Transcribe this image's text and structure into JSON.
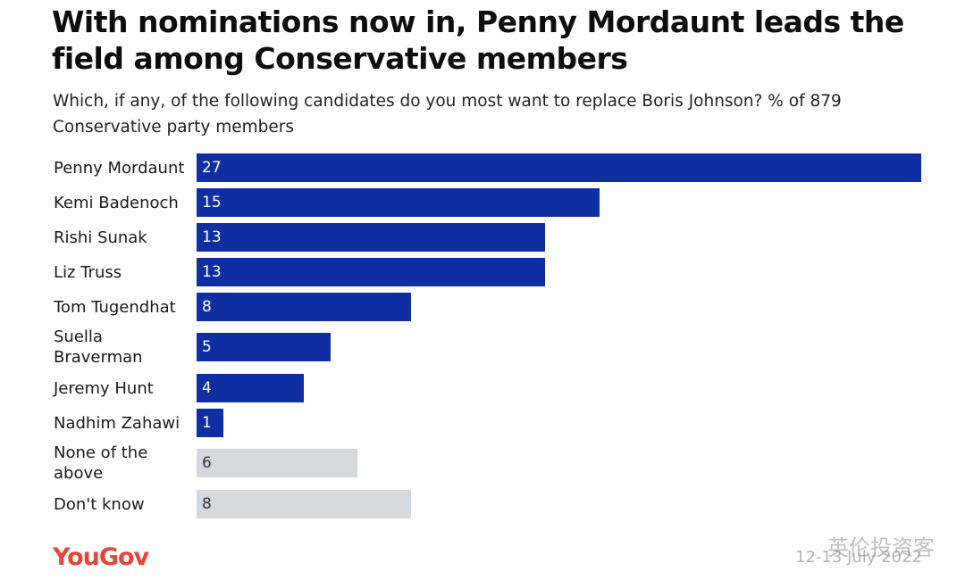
{
  "title": "With nominations now in, Penny Mordaunt leads the field among Conservative members",
  "subtitle": "Which, if any, of the following candidates do you most want to replace Boris Johnson? % of 879 Conservative party members",
  "source_logo": "YouGov",
  "date": "12-13 July 2022",
  "watermark": "英伦投资客",
  "colors": {
    "candidate_bar": "#0e2ea2",
    "other_bar": "#d4d8df",
    "candidate_value_text": "#ffffff",
    "other_value_text": "#333333",
    "logo": "#e2483a"
  },
  "chart_data": {
    "type": "bar",
    "orientation": "horizontal",
    "categories": [
      "Penny Mordaunt",
      "Kemi Badenoch",
      "Rishi Sunak",
      "Liz Truss",
      "Tom Tugendhat",
      "Suella Braverman",
      "Jeremy Hunt",
      "Nadhim Zahawi",
      "None of the above",
      "Don't know"
    ],
    "values": [
      27,
      15,
      13,
      13,
      8,
      5,
      4,
      1,
      6,
      8
    ],
    "bar_group": [
      "candidate",
      "candidate",
      "candidate",
      "candidate",
      "candidate",
      "candidate",
      "candidate",
      "candidate",
      "other",
      "other"
    ],
    "value_labels": [
      "27",
      "15",
      "13",
      "13",
      "8",
      "5",
      "4",
      "1",
      "6",
      "8"
    ],
    "xlim": [
      0,
      27
    ],
    "grid": false,
    "legend": "none"
  }
}
